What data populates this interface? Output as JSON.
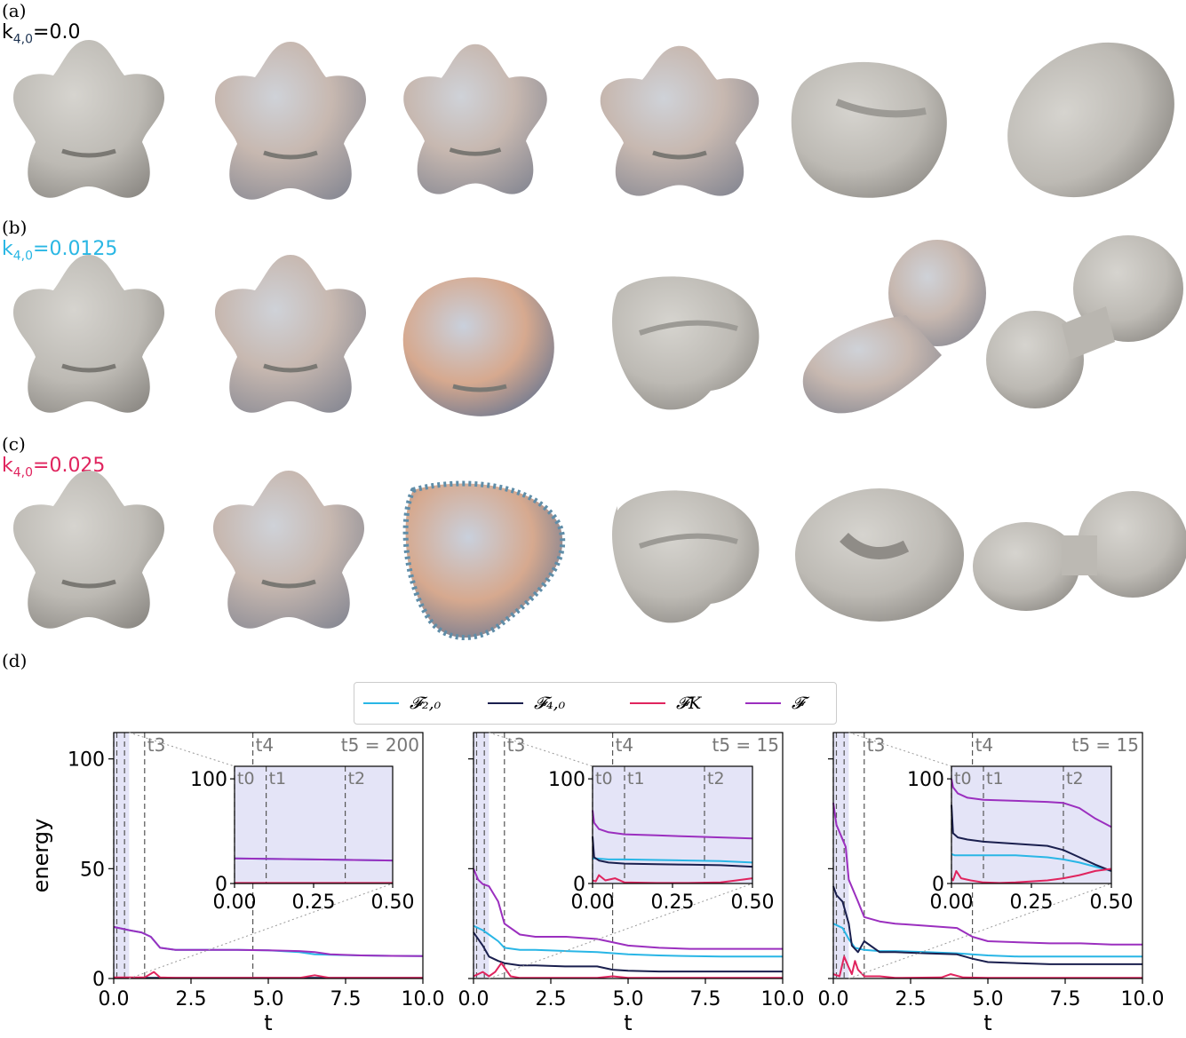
{
  "panels": [
    {
      "letter": "(a)",
      "k_label": "k",
      "k_sub": "4,0",
      "k_value": "=0.0",
      "color": "#1e3452"
    },
    {
      "letter": "(b)",
      "k_label": "k",
      "k_sub": "4,0",
      "k_value": "=0.0125",
      "color": "#2ab7e4"
    },
    {
      "letter": "(c)",
      "k_label": "k",
      "k_sub": "4,0",
      "k_value": "=0.025",
      "color": "#e0245e"
    },
    {
      "letter": "(d)"
    }
  ],
  "legend": [
    {
      "label": "𝓕₂,₀",
      "color": "#29b6e6"
    },
    {
      "label": "𝓕₄,₀",
      "color": "#1a1f4e"
    },
    {
      "label": "𝓕K",
      "color": "#e0245e"
    },
    {
      "label": "𝓕",
      "color": "#9b2fbf"
    }
  ],
  "chart_data": [
    {
      "type": "line",
      "ylabel": "energy",
      "xlabel": "t",
      "xlim": [
        0,
        10
      ],
      "ylim": [
        0,
        112
      ],
      "xticks": [
        "0.0",
        "2.5",
        "5.0",
        "7.5",
        "10.0"
      ],
      "yticks": [
        "0",
        "50",
        "100"
      ],
      "markers": [
        {
          "label": "t3",
          "x": 1.0
        },
        {
          "label": "t4",
          "x": 4.5
        },
        {
          "label": "t5 = 200"
        }
      ],
      "series": [
        {
          "name": "F",
          "x": [
            0,
            0.5,
            0.9,
            1.2,
            1.5,
            2,
            3,
            4,
            5,
            6,
            6.5,
            7,
            8,
            9,
            10
          ],
          "y": [
            23.5,
            22,
            21,
            19,
            14,
            13,
            13,
            13,
            12.8,
            12.5,
            12,
            11,
            10.5,
            10.3,
            10.2
          ]
        },
        {
          "name": "F2,0",
          "x": [
            0,
            0.5,
            0.9,
            1.2,
            1.5,
            2,
            3,
            4,
            5,
            6,
            6.5,
            7,
            8,
            9,
            10
          ],
          "y": [
            23.5,
            22,
            21,
            19,
            14,
            13,
            13,
            13,
            12.8,
            12,
            11,
            10.8,
            10.5,
            10.3,
            10.2
          ]
        },
        {
          "name": "F4,0",
          "x": [
            0,
            10
          ],
          "y": [
            0.3,
            0.3
          ]
        },
        {
          "name": "FK",
          "x": [
            0,
            1,
            1.3,
            1.5,
            2,
            6,
            6.5,
            7,
            10
          ],
          "y": [
            0.5,
            0.5,
            3,
            0.5,
            0.3,
            0.3,
            1.5,
            0.3,
            0.3
          ]
        }
      ],
      "inset": {
        "xlim": [
          0,
          0.5
        ],
        "ylim": [
          0,
          112
        ],
        "xticks": [
          "0.00",
          "0.25",
          "0.50"
        ],
        "yticks": [
          "0",
          "100"
        ],
        "markers": [
          {
            "label": "t0",
            "x": 0.0
          },
          {
            "label": "t1",
            "x": 0.1
          },
          {
            "label": "t2",
            "x": 0.35
          }
        ],
        "series": [
          {
            "name": "F",
            "x": [
              0,
              0.5
            ],
            "y": [
              24,
              22
            ]
          },
          {
            "name": "F2,0",
            "x": [
              0,
              0.5
            ],
            "y": [
              24,
              22
            ]
          },
          {
            "name": "FK",
            "x": [
              0,
              0.5
            ],
            "y": [
              0.5,
              0.5
            ]
          }
        ]
      }
    },
    {
      "type": "line",
      "xlabel": "t",
      "xlim": [
        0,
        10
      ],
      "ylim": [
        0,
        112
      ],
      "xticks": [
        "0.0",
        "2.5",
        "5.0",
        "7.5",
        "10.0"
      ],
      "markers": [
        {
          "label": "t3",
          "x": 1.0
        },
        {
          "label": "t4",
          "x": 4.5
        },
        {
          "label": "t5 = 15"
        }
      ],
      "series": [
        {
          "name": "F",
          "x": [
            0,
            0.15,
            0.3,
            0.5,
            0.8,
            1.0,
            1.5,
            2,
            3,
            4,
            5,
            6,
            7,
            8,
            9,
            10
          ],
          "y": [
            50,
            45,
            43,
            42,
            35,
            25,
            20,
            19,
            19,
            18,
            15,
            14,
            13.5,
            13.5,
            13.5,
            13.5
          ]
        },
        {
          "name": "F2,0",
          "x": [
            0,
            0.3,
            0.5,
            0.8,
            1.0,
            1.5,
            2,
            3,
            4,
            5,
            6,
            7,
            8,
            9,
            10
          ],
          "y": [
            24,
            22,
            20,
            17,
            14,
            13,
            13,
            12.5,
            12,
            11,
            10.5,
            10.2,
            10,
            10,
            10
          ]
        },
        {
          "name": "F4,0",
          "x": [
            0,
            0.3,
            0.5,
            0.8,
            1.0,
            1.5,
            2,
            3,
            4,
            4.5,
            5,
            6,
            7,
            8,
            9,
            10
          ],
          "y": [
            21,
            15,
            10,
            8,
            7,
            6,
            6,
            5.5,
            5.5,
            4,
            3.5,
            3.2,
            3.2,
            3.2,
            3.2,
            3.2
          ]
        },
        {
          "name": "FK",
          "x": [
            0,
            0.3,
            0.5,
            0.7,
            0.9,
            1.2,
            1.5,
            4,
            4.5,
            5,
            10
          ],
          "y": [
            1,
            3,
            1,
            3,
            7,
            1,
            0.3,
            0.3,
            1,
            0.3,
            0.3
          ]
        }
      ],
      "inset": {
        "xlim": [
          0,
          0.5
        ],
        "ylim": [
          0,
          112
        ],
        "xticks": [
          "0.00",
          "0.25",
          "0.50"
        ],
        "yticks": [
          "0",
          "100"
        ],
        "markers": [
          {
            "label": "t0",
            "x": 0.0
          },
          {
            "label": "t1",
            "x": 0.1
          },
          {
            "label": "t2",
            "x": 0.35
          }
        ],
        "series": [
          {
            "name": "F",
            "x": [
              0,
              0.005,
              0.02,
              0.05,
              0.1,
              0.2,
              0.3,
              0.4,
              0.5
            ],
            "y": [
              70,
              58,
              52,
              49,
              47,
              46,
              45,
              44,
              43
            ]
          },
          {
            "name": "F2,0",
            "x": [
              0,
              0.01,
              0.05,
              0.1,
              0.2,
              0.3,
              0.4,
              0.5
            ],
            "y": [
              24,
              24,
              23,
              23,
              22.5,
              22,
              21.5,
              20
            ]
          },
          {
            "name": "F4,0",
            "x": [
              0,
              0.005,
              0.02,
              0.05,
              0.1,
              0.2,
              0.3,
              0.4,
              0.5
            ],
            "y": [
              45,
              25,
              22,
              20,
              19,
              18.5,
              18,
              17.5,
              16
            ]
          },
          {
            "name": "FK",
            "x": [
              0,
              0.01,
              0.02,
              0.04,
              0.07,
              0.1,
              0.2,
              0.3,
              0.4,
              0.45,
              0.5
            ],
            "y": [
              3,
              2,
              8,
              3,
              5,
              1,
              0.5,
              0.5,
              1,
              3,
              5
            ]
          }
        ]
      }
    },
    {
      "type": "line",
      "xlabel": "t",
      "xlim": [
        0,
        10
      ],
      "ylim": [
        0,
        112
      ],
      "xticks": [
        "0.0",
        "2.5",
        "5.0",
        "7.5",
        "10.0"
      ],
      "markers": [
        {
          "label": "t3",
          "x": 1.0
        },
        {
          "label": "t4",
          "x": 4.5
        },
        {
          "label": "t5 = 15"
        }
      ],
      "series": [
        {
          "name": "F",
          "x": [
            0,
            0.1,
            0.25,
            0.4,
            0.5,
            0.8,
            1.0,
            1.5,
            2,
            3,
            4,
            4.5,
            5,
            6,
            7,
            8,
            9,
            10
          ],
          "y": [
            80,
            70,
            65,
            60,
            45,
            35,
            28,
            26,
            25,
            24,
            23,
            19,
            17,
            16.5,
            16,
            16,
            15.5,
            15.5
          ]
        },
        {
          "name": "F2,0",
          "x": [
            0,
            0.3,
            0.5,
            0.7,
            1.0,
            1.5,
            2,
            3,
            4,
            5,
            6,
            7,
            8,
            9,
            10
          ],
          "y": [
            25,
            23,
            18,
            14,
            13,
            12.5,
            12.5,
            12,
            11.5,
            10.5,
            10,
            10,
            10,
            10,
            10
          ]
        },
        {
          "name": "F4,0",
          "x": [
            0,
            0.1,
            0.3,
            0.5,
            0.6,
            0.8,
            1.0,
            1.5,
            2,
            3,
            4,
            4.5,
            5,
            6,
            7,
            8,
            9,
            10
          ],
          "y": [
            42,
            38,
            35,
            25,
            15,
            12,
            17,
            12,
            12,
            11.5,
            11,
            9,
            7.5,
            7,
            6.5,
            6.5,
            6.5,
            6.5
          ]
        },
        {
          "name": "FK",
          "x": [
            0,
            0.2,
            0.35,
            0.5,
            0.6,
            0.7,
            0.8,
            1.0,
            1.2,
            1.5,
            2,
            3.5,
            3.8,
            4.2,
            5,
            10
          ],
          "y": [
            2,
            1,
            10,
            5,
            2,
            8,
            4,
            1,
            1,
            1,
            0.3,
            0.5,
            2,
            0.5,
            0.3,
            0.3
          ]
        }
      ],
      "inset": {
        "xlim": [
          0,
          0.5
        ],
        "ylim": [
          0,
          112
        ],
        "xticks": [
          "0.00",
          "0.25",
          "0.50"
        ],
        "yticks": [
          "0",
          "100"
        ],
        "markers": [
          {
            "label": "t0",
            "x": 0.0
          },
          {
            "label": "t1",
            "x": 0.1
          },
          {
            "label": "t2",
            "x": 0.35
          }
        ],
        "series": [
          {
            "name": "F",
            "x": [
              0,
              0.005,
              0.02,
              0.05,
              0.1,
              0.2,
              0.3,
              0.35,
              0.4,
              0.45,
              0.5
            ],
            "y": [
              100,
              92,
              86,
              82,
              80,
              79,
              78,
              77,
              72,
              62,
              54
            ]
          },
          {
            "name": "F2,0",
            "x": [
              0,
              0.01,
              0.05,
              0.1,
              0.2,
              0.3,
              0.35,
              0.4,
              0.45,
              0.5
            ],
            "y": [
              28,
              27,
              27,
              27,
              27,
              25,
              23,
              20,
              16,
              12
            ]
          },
          {
            "name": "F4,0",
            "x": [
              0,
              0.005,
              0.02,
              0.05,
              0.1,
              0.2,
              0.3,
              0.35,
              0.4,
              0.45,
              0.5
            ],
            "y": [
              75,
              48,
              44,
              42,
              40,
              38,
              36,
              32,
              25,
              18,
              12
            ]
          },
          {
            "name": "FK",
            "x": [
              0,
              0.005,
              0.015,
              0.03,
              0.06,
              0.1,
              0.15,
              0.2,
              0.3,
              0.35,
              0.4,
              0.45,
              0.5
            ],
            "y": [
              5,
              3,
              12,
              5,
              3,
              1,
              0.5,
              1,
              3,
              5,
              8,
              12,
              14
            ]
          }
        ]
      }
    }
  ]
}
